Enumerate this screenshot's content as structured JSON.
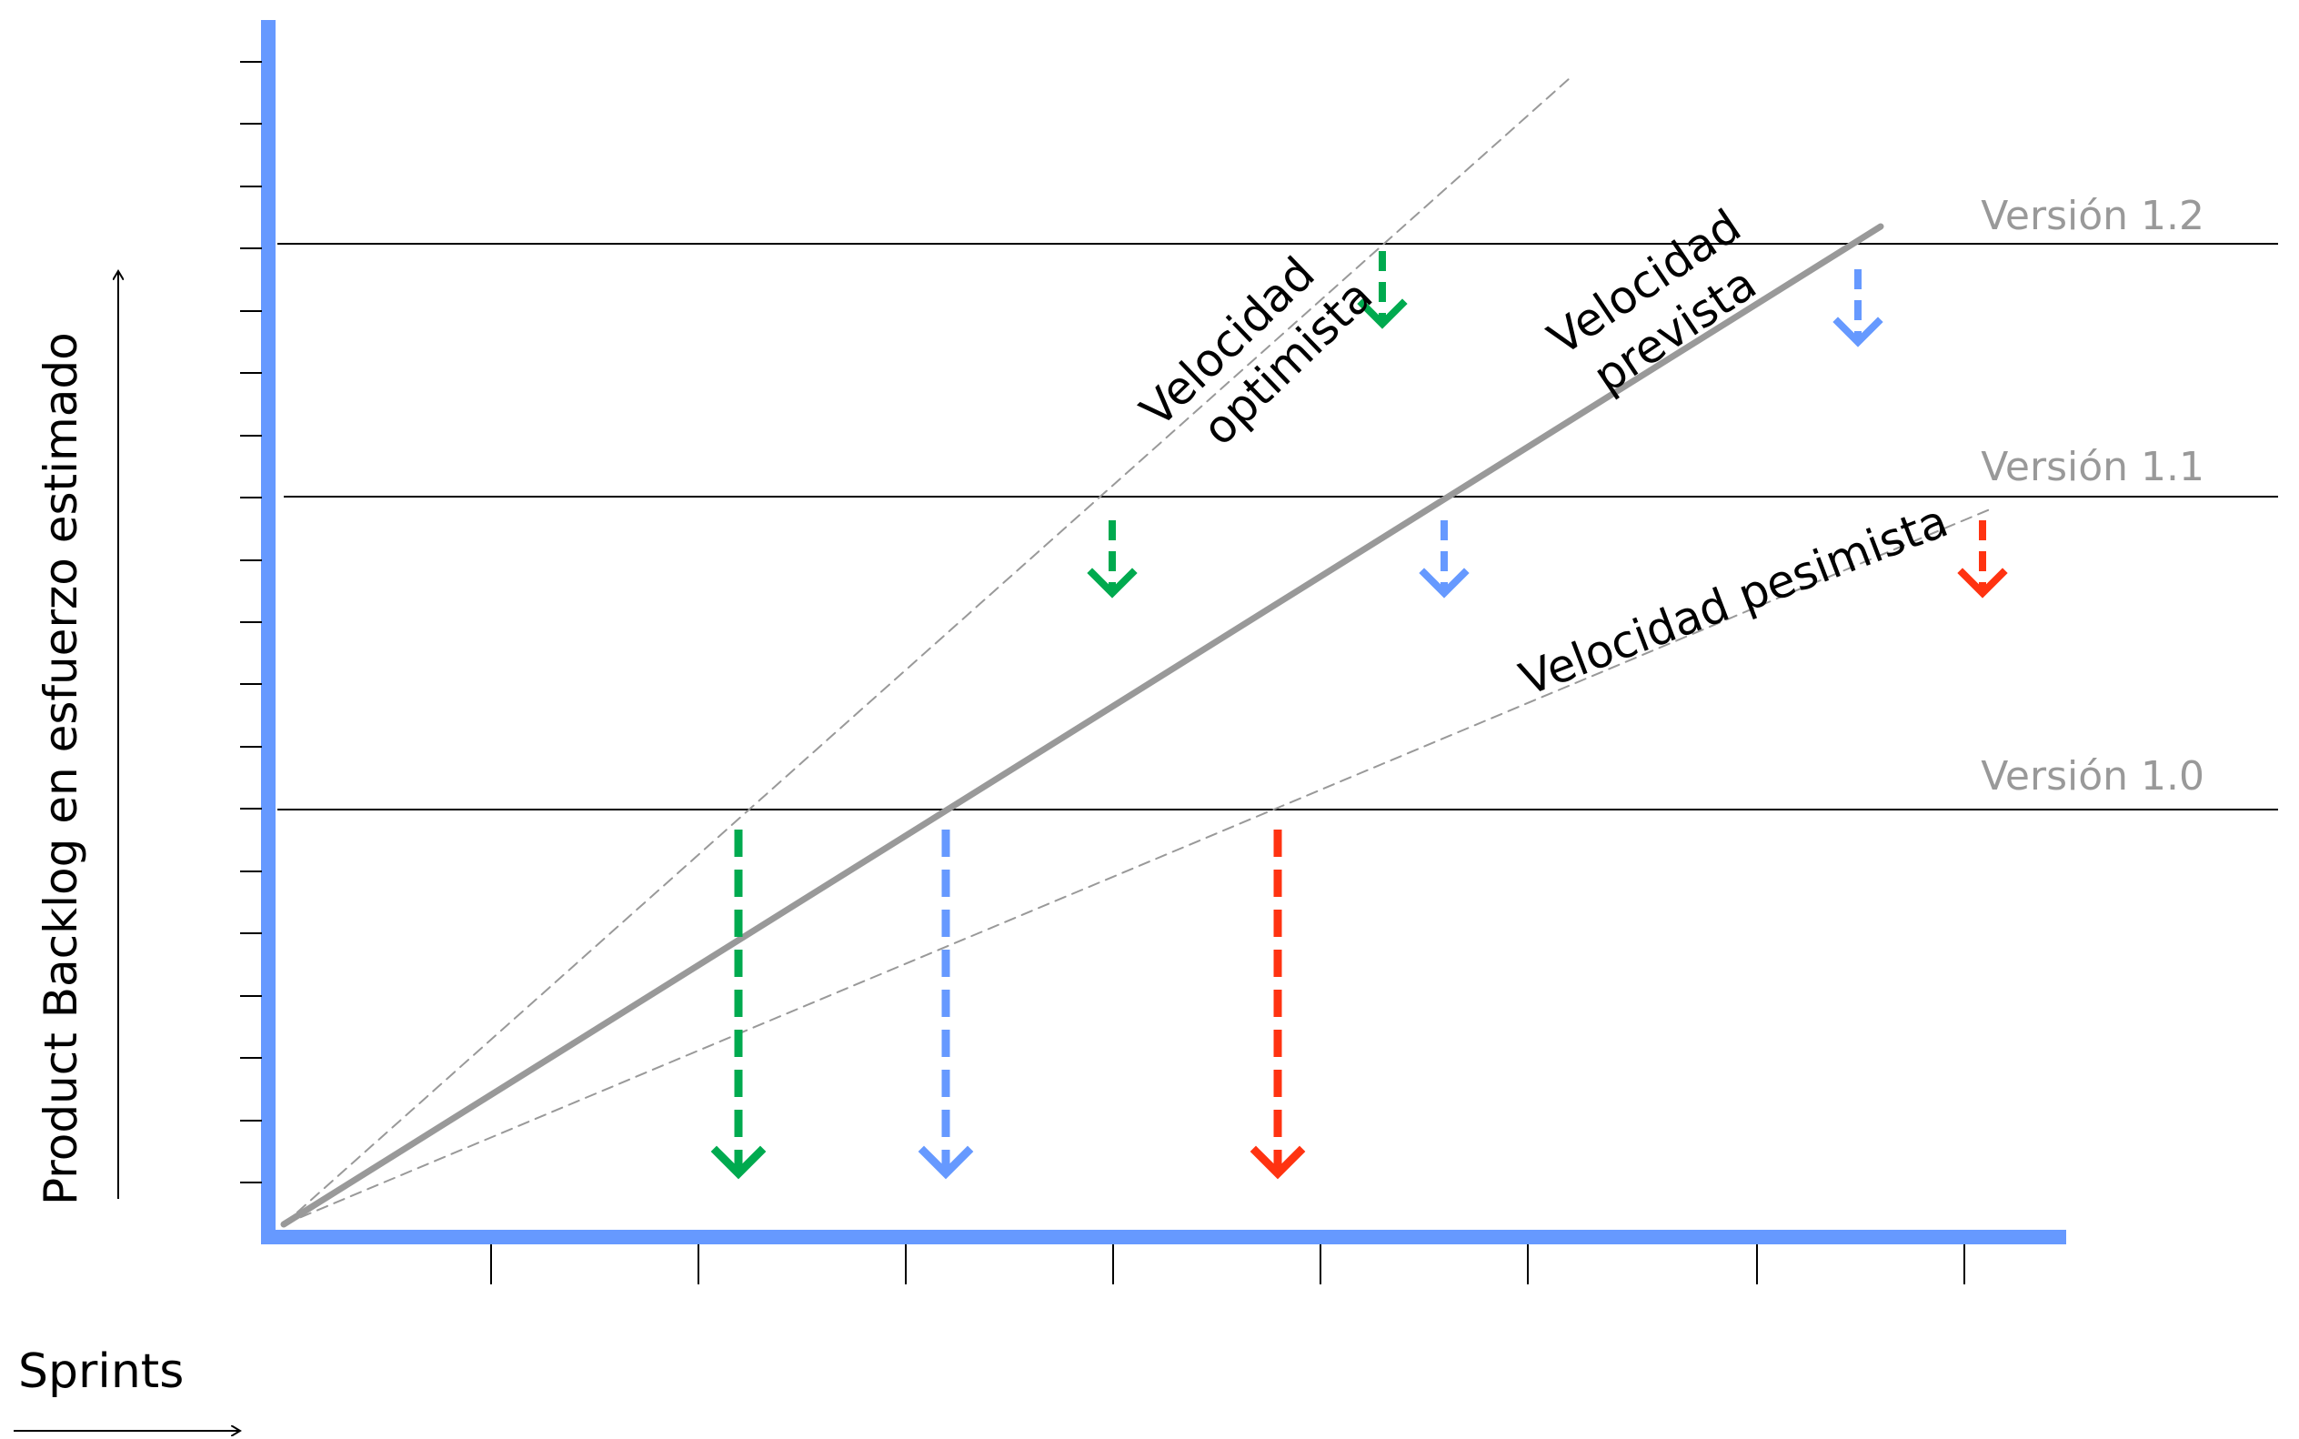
{
  "chart_data": {
    "type": "line",
    "title": "",
    "xlabel": "Sprints",
    "ylabel": "Product Backlog en esfuerzo estimado",
    "x_ticks_count": 8,
    "y_ticks_count": 19,
    "grid": false,
    "colors": {
      "axis": "#6699ff",
      "optimista": "#00aa4f",
      "prevista": "#6699ff",
      "pesimista": "#ff3311",
      "line": "#999999",
      "version_label": "#999999"
    },
    "releases": [
      {
        "name": "Versión 1.0"
      },
      {
        "name": "Versión 1.1"
      },
      {
        "name": "Versión 1.2"
      }
    ],
    "series": [
      {
        "name": "Velocidad optimista",
        "key": "optimista",
        "style": "dashed"
      },
      {
        "name": "Velocidad prevista",
        "key": "prevista",
        "style": "solid"
      },
      {
        "name": "Velocidad pesimista",
        "key": "pesimista",
        "style": "dashed"
      }
    ],
    "labels": {
      "optimista": [
        "Velocidad",
        "optimista"
      ],
      "prevista": [
        "Velocidad",
        "prevista"
      ],
      "pesimista": [
        "Velocidad pesimista"
      ]
    }
  }
}
